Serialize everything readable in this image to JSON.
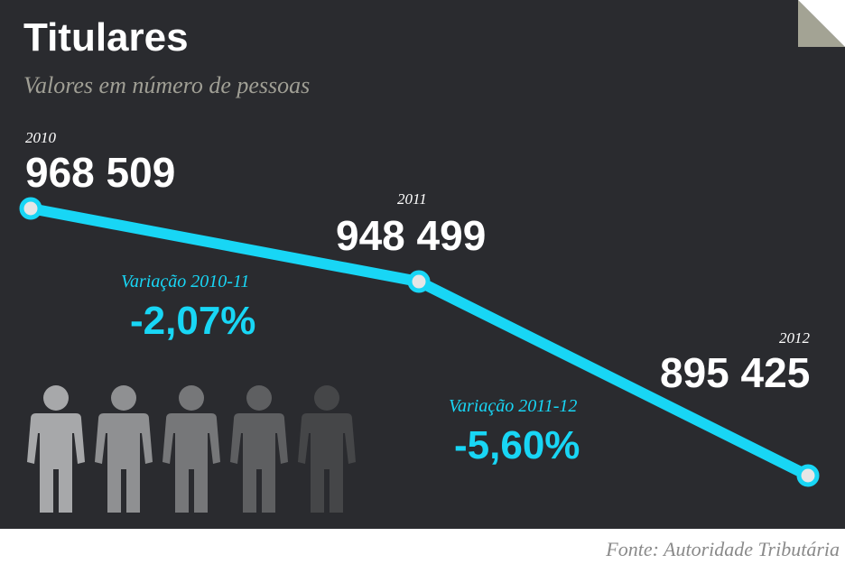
{
  "header": {
    "title": "Titulares",
    "subtitle": "Valores em número de pessoas"
  },
  "colors": {
    "background": "#2a2b2f",
    "line": "#18d6f5",
    "fold": "#a3a394",
    "text": "#ffffff",
    "subtitle": "#a09f95"
  },
  "chart_data": {
    "type": "line",
    "title": "Titulares",
    "subtitle": "Valores em número de pessoas",
    "x": [
      "2010",
      "2011",
      "2012"
    ],
    "series": [
      {
        "values": [
          968509,
          948499,
          895425
        ]
      }
    ],
    "data_labels": [
      "968 509",
      "948 499",
      "895 425"
    ],
    "ylim": [
      895425,
      968509
    ],
    "grid": false,
    "annotations": [
      {
        "label": "Variação 2010-11",
        "value": "-2,07%"
      },
      {
        "label": "Variação 2011-12",
        "value": "-5,60%"
      }
    ]
  },
  "icons": {
    "people": [
      "person-icon",
      "person-icon",
      "person-icon",
      "person-icon",
      "person-icon"
    ],
    "people_colors": [
      "#a7a8aa",
      "#8f9092",
      "#767779",
      "#5e5f61",
      "#454648"
    ]
  },
  "footer": {
    "source": "Fonte: Autoridade Tributária"
  }
}
